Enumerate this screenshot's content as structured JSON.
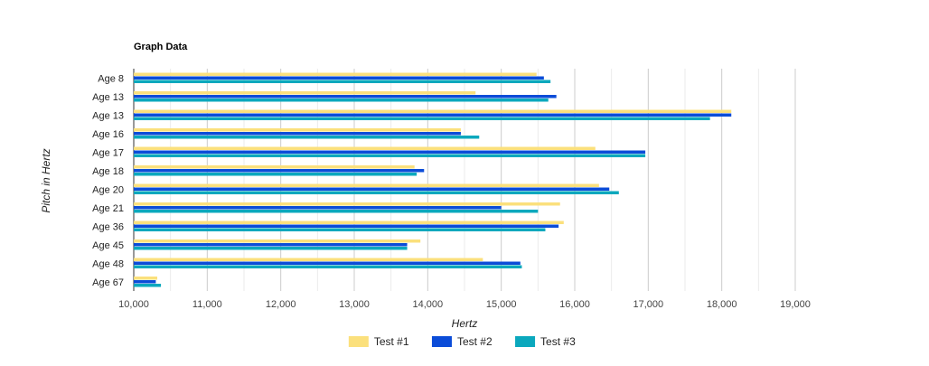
{
  "chart_data": {
    "type": "bar",
    "orientation": "horizontal",
    "title": "Graph Data",
    "xlabel": "Hertz",
    "ylabel": "Pitch in Hertz",
    "xlim": [
      10000,
      19000
    ],
    "x_ticks": [
      10000,
      11000,
      12000,
      13000,
      14000,
      15000,
      16000,
      17000,
      18000,
      19000
    ],
    "x_tick_labels": [
      "10,000",
      "11,000",
      "12,000",
      "13,000",
      "14,000",
      "15,000",
      "16,000",
      "17,000",
      "18,000",
      "19,000"
    ],
    "categories": [
      "Age 8",
      "Age 13",
      "Age 13",
      "Age 16",
      "Age 17",
      "Age 18",
      "Age 20",
      "Age 21",
      "Age 36",
      "Age 45",
      "Age 48",
      "Age 67"
    ],
    "series": [
      {
        "name": "Test #1",
        "color": "#fbe07c",
        "values": [
          15480,
          14650,
          18130,
          14450,
          16280,
          13820,
          16330,
          15800,
          15850,
          13900,
          14750,
          10320
        ]
      },
      {
        "name": "Test #2",
        "color": "#0b4cd8",
        "values": [
          15580,
          15750,
          18130,
          14450,
          16960,
          13950,
          16470,
          15000,
          15780,
          13720,
          15260,
          10300
        ]
      },
      {
        "name": "Test #3",
        "color": "#0ba8bd",
        "values": [
          15670,
          15640,
          17840,
          14700,
          16960,
          13850,
          16600,
          15500,
          15600,
          13720,
          15280,
          10370
        ]
      }
    ],
    "grid": true,
    "legend_position": "bottom"
  }
}
